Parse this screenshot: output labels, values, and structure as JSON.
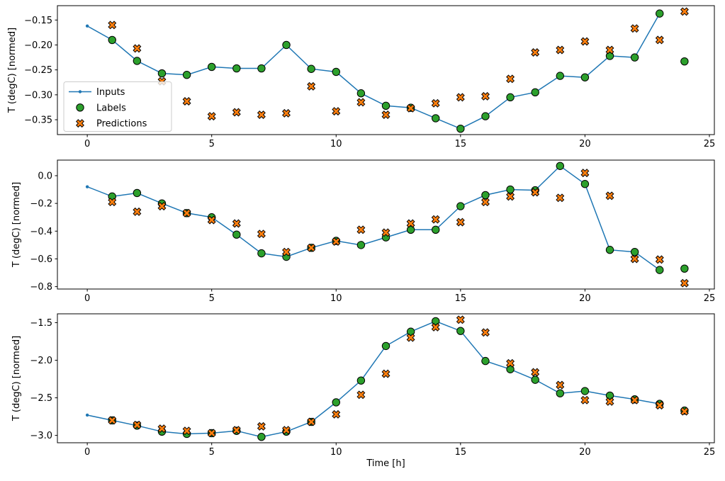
{
  "figure": {
    "xlabel": "Time [h]",
    "background": "#ffffff",
    "legend": {
      "position": "center-left-subplot-1",
      "entries": [
        {
          "label": "Inputs",
          "marker": "line-dot",
          "color": "#1f77b4"
        },
        {
          "label": "Labels",
          "marker": "circle",
          "color": "#2ca02c"
        },
        {
          "label": "Predictions",
          "marker": "x",
          "color": "#ff7f0e"
        }
      ]
    }
  },
  "chart_data": [
    {
      "type": "line",
      "title": "",
      "ylabel": "T (degC) [normed]",
      "xlim": [
        -1.2,
        25.2
      ],
      "ylim": [
        -0.3798,
        -0.1212
      ],
      "xticks": [
        0,
        5,
        10,
        15,
        20,
        25
      ],
      "xtick_labels": [
        "0",
        "5",
        "10",
        "15",
        "20",
        "25"
      ],
      "yticks": [
        -0.15,
        -0.2,
        -0.25,
        -0.3,
        -0.35
      ],
      "ytick_labels": [
        "−0.15",
        "−0.20",
        "−0.25",
        "−0.30",
        "−0.35"
      ],
      "grid": false,
      "series": [
        {
          "name": "Inputs",
          "type": "line",
          "color": "#1f77b4",
          "x": [
            0,
            1,
            2,
            3,
            4,
            5,
            6,
            7,
            8,
            9,
            10,
            11,
            12,
            13,
            14,
            15,
            16,
            17,
            18,
            19,
            20,
            21,
            22,
            23
          ],
          "y": [
            -0.162,
            -0.19,
            -0.232,
            -0.257,
            -0.26,
            -0.244,
            -0.247,
            -0.247,
            -0.2,
            -0.248,
            -0.254,
            -0.297,
            -0.322,
            -0.326,
            -0.347,
            -0.368,
            -0.343,
            -0.305,
            -0.295,
            -0.262,
            -0.265,
            -0.222,
            -0.225,
            -0.137
          ]
        },
        {
          "name": "Labels",
          "type": "circle",
          "color": "#2ca02c",
          "x": [
            1,
            2,
            3,
            4,
            5,
            6,
            7,
            8,
            9,
            10,
            11,
            12,
            13,
            14,
            15,
            16,
            17,
            18,
            19,
            20,
            21,
            22,
            23,
            24
          ],
          "y": [
            -0.19,
            -0.232,
            -0.257,
            -0.26,
            -0.244,
            -0.247,
            -0.247,
            -0.2,
            -0.248,
            -0.254,
            -0.297,
            -0.322,
            -0.326,
            -0.347,
            -0.368,
            -0.343,
            -0.305,
            -0.295,
            -0.262,
            -0.265,
            -0.222,
            -0.225,
            -0.137,
            -0.233
          ]
        },
        {
          "name": "Predictions",
          "type": "x",
          "color": "#ff7f0e",
          "x": [
            1,
            2,
            3,
            4,
            5,
            6,
            7,
            8,
            9,
            10,
            11,
            12,
            13,
            14,
            15,
            16,
            17,
            18,
            19,
            20,
            21,
            22,
            23,
            24
          ],
          "y": [
            -0.16,
            -0.207,
            -0.273,
            -0.313,
            -0.343,
            -0.335,
            -0.34,
            -0.337,
            -0.283,
            -0.333,
            -0.315,
            -0.34,
            -0.327,
            -0.317,
            -0.305,
            -0.303,
            -0.268,
            -0.215,
            -0.21,
            -0.193,
            -0.21,
            -0.167,
            -0.19,
            -0.133
          ]
        }
      ]
    },
    {
      "type": "line",
      "title": "",
      "ylabel": "T (degC) [normed]",
      "xlim": [
        -1.2,
        25.2
      ],
      "ylim": [
        -0.8173,
        0.1123
      ],
      "xticks": [
        0,
        5,
        10,
        15,
        20,
        25
      ],
      "xtick_labels": [
        "0",
        "5",
        "10",
        "15",
        "20",
        "25"
      ],
      "yticks": [
        0.0,
        -0.2,
        -0.4,
        -0.6,
        -0.8
      ],
      "ytick_labels": [
        "0.0",
        "−0.2",
        "−0.4",
        "−0.6",
        "−0.8"
      ],
      "grid": false,
      "series": [
        {
          "name": "Inputs",
          "type": "line",
          "color": "#1f77b4",
          "x": [
            0,
            1,
            2,
            3,
            4,
            5,
            6,
            7,
            8,
            9,
            10,
            11,
            12,
            13,
            14,
            15,
            16,
            17,
            18,
            19,
            20,
            21,
            22,
            23
          ],
          "y": [
            -0.08,
            -0.15,
            -0.125,
            -0.2,
            -0.27,
            -0.3,
            -0.425,
            -0.56,
            -0.585,
            -0.52,
            -0.47,
            -0.5,
            -0.445,
            -0.39,
            -0.39,
            -0.22,
            -0.14,
            -0.1,
            -0.105,
            0.07,
            -0.06,
            -0.535,
            -0.55,
            -0.68
          ]
        },
        {
          "name": "Labels",
          "type": "circle",
          "color": "#2ca02c",
          "x": [
            1,
            2,
            3,
            4,
            5,
            6,
            7,
            8,
            9,
            10,
            11,
            12,
            13,
            14,
            15,
            16,
            17,
            18,
            19,
            20,
            21,
            22,
            23,
            24
          ],
          "y": [
            -0.15,
            -0.125,
            -0.2,
            -0.27,
            -0.3,
            -0.425,
            -0.56,
            -0.585,
            -0.52,
            -0.47,
            -0.5,
            -0.445,
            -0.39,
            -0.39,
            -0.22,
            -0.14,
            -0.1,
            -0.105,
            0.07,
            -0.06,
            -0.535,
            -0.55,
            -0.68,
            -0.67
          ]
        },
        {
          "name": "Predictions",
          "type": "x",
          "color": "#ff7f0e",
          "x": [
            1,
            2,
            3,
            4,
            5,
            6,
            7,
            8,
            9,
            10,
            11,
            12,
            13,
            14,
            15,
            16,
            17,
            18,
            19,
            20,
            21,
            22,
            23,
            24
          ],
          "y": [
            -0.19,
            -0.26,
            -0.22,
            -0.27,
            -0.32,
            -0.345,
            -0.42,
            -0.55,
            -0.52,
            -0.475,
            -0.39,
            -0.41,
            -0.345,
            -0.315,
            -0.335,
            -0.19,
            -0.15,
            -0.12,
            -0.16,
            0.02,
            -0.145,
            -0.6,
            -0.605,
            -0.775
          ]
        }
      ]
    },
    {
      "type": "line",
      "title": "",
      "ylabel": "T (degC) [normed]",
      "xlabel": "Time [h]",
      "xlim": [
        -1.2,
        25.2
      ],
      "ylim": [
        -3.098,
        -1.382
      ],
      "xticks": [
        0,
        5,
        10,
        15,
        20,
        25
      ],
      "xtick_labels": [
        "0",
        "5",
        "10",
        "15",
        "20",
        "25"
      ],
      "yticks": [
        -1.5,
        -2.0,
        -2.5,
        -3.0
      ],
      "ytick_labels": [
        "−1.5",
        "−2.0",
        "−2.5",
        "−3.0"
      ],
      "grid": false,
      "series": [
        {
          "name": "Inputs",
          "type": "line",
          "color": "#1f77b4",
          "x": [
            0,
            1,
            2,
            3,
            4,
            5,
            6,
            7,
            8,
            9,
            10,
            11,
            12,
            13,
            14,
            15,
            16,
            17,
            18,
            19,
            20,
            21,
            22,
            23
          ],
          "y": [
            -2.73,
            -2.8,
            -2.87,
            -2.95,
            -2.98,
            -2.97,
            -2.94,
            -3.02,
            -2.95,
            -2.82,
            -2.56,
            -2.27,
            -1.81,
            -1.62,
            -1.48,
            -1.61,
            -2.01,
            -2.12,
            -2.26,
            -2.44,
            -2.41,
            -2.47,
            -2.52,
            -2.58
          ]
        },
        {
          "name": "Labels",
          "type": "circle",
          "color": "#2ca02c",
          "x": [
            1,
            2,
            3,
            4,
            5,
            6,
            7,
            8,
            9,
            10,
            11,
            12,
            13,
            14,
            15,
            16,
            17,
            18,
            19,
            20,
            21,
            22,
            23,
            24
          ],
          "y": [
            -2.8,
            -2.87,
            -2.95,
            -2.98,
            -2.97,
            -2.94,
            -3.02,
            -2.95,
            -2.82,
            -2.56,
            -2.27,
            -1.81,
            -1.62,
            -1.48,
            -1.61,
            -2.01,
            -2.12,
            -2.26,
            -2.44,
            -2.41,
            -2.47,
            -2.52,
            -2.58,
            -2.67
          ]
        },
        {
          "name": "Predictions",
          "type": "x",
          "color": "#ff7f0e",
          "x": [
            1,
            2,
            3,
            4,
            5,
            6,
            7,
            8,
            9,
            10,
            11,
            12,
            13,
            14,
            15,
            16,
            17,
            18,
            19,
            20,
            21,
            22,
            23,
            24
          ],
          "y": [
            -2.8,
            -2.86,
            -2.91,
            -2.94,
            -2.97,
            -2.93,
            -2.88,
            -2.93,
            -2.82,
            -2.72,
            -2.46,
            -2.18,
            -1.7,
            -1.56,
            -1.46,
            -1.63,
            -2.04,
            -2.16,
            -2.33,
            -2.53,
            -2.55,
            -2.53,
            -2.6,
            -2.68
          ]
        }
      ]
    }
  ]
}
